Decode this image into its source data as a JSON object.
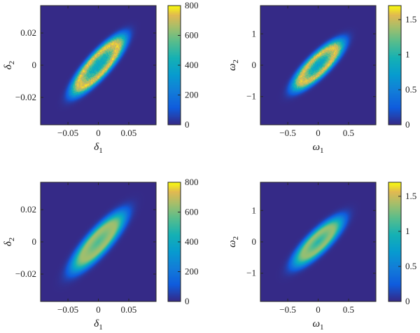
{
  "chart_data": [
    {
      "type": "heatmap",
      "title": "",
      "xlabel": "δ",
      "xlabel_sub": "1",
      "ylabel": "δ",
      "ylabel_sub": "2",
      "xlim": [
        -0.095,
        0.095
      ],
      "ylim": [
        -0.037,
        0.037
      ],
      "xticks": [
        -0.05,
        0,
        0.05
      ],
      "xtick_labels": [
        "−0.05",
        "0",
        "0.05"
      ],
      "yticks": [
        -0.02,
        0,
        0.02
      ],
      "ytick_labels": [
        "−0.02",
        "0",
        "0.02"
      ],
      "colorbar": {
        "min": 0,
        "max": 800,
        "ticks": [
          0,
          200,
          400,
          600,
          800
        ],
        "tick_labels": [
          "0",
          "200",
          "400",
          "600",
          "800"
        ]
      },
      "colormap": "parula",
      "distribution": {
        "shape": "ring",
        "center": [
          0,
          0
        ],
        "semi_axis_major": 0.055,
        "semi_axis_minor": 0.011,
        "tilt_deg": 20,
        "ring_radius": 0.62,
        "ring_width": 0.27,
        "peak": 740,
        "center_value": 400,
        "texture": "speckle"
      },
      "grid": false
    },
    {
      "type": "heatmap",
      "title": "",
      "xlabel": "ω",
      "xlabel_sub": "1",
      "ylabel": "ω",
      "ylabel_sub": "2",
      "xlim": [
        -0.95,
        0.95
      ],
      "ylim": [
        -1.9,
        1.9
      ],
      "xticks": [
        -0.5,
        0,
        0.5
      ],
      "xtick_labels": [
        "−0.5",
        "0",
        "0.5"
      ],
      "yticks": [
        -1,
        0,
        1
      ],
      "ytick_labels": [
        "−1",
        "0",
        "1"
      ],
      "colorbar": {
        "min": 0,
        "max": 1.7,
        "ticks": [
          0,
          0.5,
          1,
          1.5
        ],
        "tick_labels": [
          "0",
          "0.5",
          "1",
          "1.5"
        ]
      },
      "colormap": "parula",
      "distribution": {
        "shape": "ring",
        "center": [
          0,
          0
        ],
        "semi_axis_major": 1.0,
        "semi_axis_minor": 0.25,
        "tilt_deg": -115,
        "ring_radius": 0.6,
        "ring_width": 0.3,
        "peak": 1.55,
        "center_value": 0.75,
        "texture": "speckle"
      },
      "grid": false
    },
    {
      "type": "heatmap",
      "title": "",
      "xlabel": "δ",
      "xlabel_sub": "1",
      "ylabel": "δ",
      "ylabel_sub": "2",
      "xlim": [
        -0.095,
        0.095
      ],
      "ylim": [
        -0.037,
        0.037
      ],
      "xticks": [
        -0.05,
        0,
        0.05
      ],
      "xtick_labels": [
        "−0.05",
        "0",
        "0.05"
      ],
      "yticks": [
        -0.02,
        0,
        0.02
      ],
      "ytick_labels": [
        "−0.02",
        "0",
        "0.02"
      ],
      "colorbar": {
        "min": 0,
        "max": 800,
        "ticks": [
          0,
          200,
          400,
          600,
          800
        ],
        "tick_labels": [
          "0",
          "200",
          "400",
          "600",
          "800"
        ]
      },
      "colormap": "parula",
      "distribution": {
        "shape": "ring",
        "center": [
          0,
          0
        ],
        "semi_axis_major": 0.055,
        "semi_axis_minor": 0.011,
        "tilt_deg": 20,
        "ring_radius": 0.5,
        "ring_width": 0.36,
        "peak": 650,
        "center_value": 520,
        "texture": "smooth"
      },
      "grid": false
    },
    {
      "type": "heatmap",
      "title": "",
      "xlabel": "ω",
      "xlabel_sub": "1",
      "ylabel": "ω",
      "ylabel_sub": "2",
      "xlim": [
        -0.95,
        0.95
      ],
      "ylim": [
        -1.9,
        1.9
      ],
      "xticks": [
        -0.5,
        0,
        0.5
      ],
      "xtick_labels": [
        "−0.5",
        "0",
        "0.5"
      ],
      "yticks": [
        -1,
        0,
        1
      ],
      "ytick_labels": [
        "−1",
        "0",
        "1"
      ],
      "colorbar": {
        "min": 0,
        "max": 1.7,
        "ticks": [
          0,
          0.5,
          1,
          1.5
        ],
        "tick_labels": [
          "0",
          "0.5",
          "1",
          "1.5"
        ]
      },
      "colormap": "parula",
      "distribution": {
        "shape": "ring",
        "center": [
          0,
          0
        ],
        "semi_axis_major": 1.0,
        "semi_axis_minor": 0.25,
        "tilt_deg": -115,
        "ring_radius": 0.5,
        "ring_width": 0.36,
        "peak": 1.35,
        "center_value": 0.95,
        "texture": "smooth"
      },
      "grid": false
    }
  ]
}
